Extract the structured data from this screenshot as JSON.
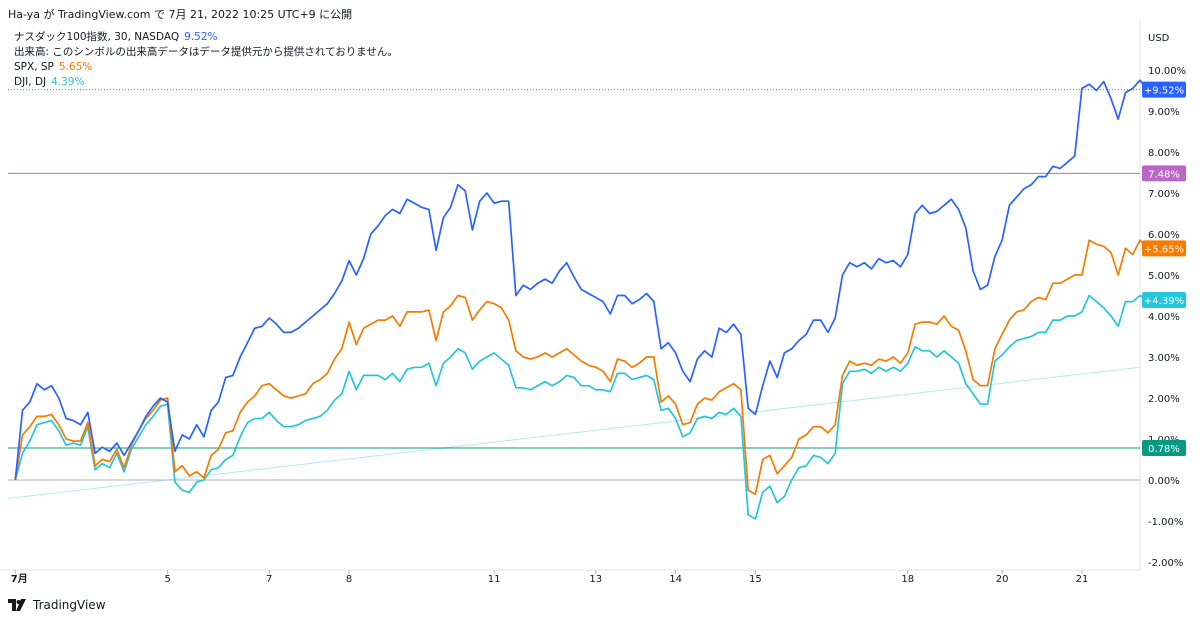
{
  "header": {
    "published_text": "Ha-ya が TradingView.com で 7月 21, 2022 10:25 UTC+9 に公開"
  },
  "legend": {
    "main": {
      "name": "ナスダック100指数, 30, NASDAQ",
      "value": "9.52%"
    },
    "volume_note": "出来高: このシンボルの出来高データはデータ提供元から提供されておりません。",
    "spx": {
      "name": "SPX, SP",
      "value": "5.65%"
    },
    "dji": {
      "name": "DJI, DJ",
      "value": "4.39%"
    }
  },
  "footer": {
    "brand": "TradingView"
  },
  "colors": {
    "ndx": "#2962ff",
    "spx": "#f57c00",
    "dji": "#26c6da",
    "purple_line": "#ba68c8",
    "green_line": "#089981",
    "zero_line": "#b2b5be",
    "trend_line": "#b2ebf2"
  },
  "chart_data": {
    "type": "line",
    "currency": "USD",
    "ylim": [
      -2.0,
      10.5
    ],
    "y_ticks": [
      "10.00%",
      "9.00%",
      "8.00%",
      "7.00%",
      "6.00%",
      "5.00%",
      "4.00%",
      "3.00%",
      "2.00%",
      "1.00%",
      "0.00%",
      "-1.00%",
      "-2.00%"
    ],
    "y_tick_values": [
      10,
      9,
      8,
      7,
      6,
      5,
      4,
      3,
      2,
      1,
      0,
      -1,
      -2
    ],
    "x_ticks": [
      {
        "label": "7月",
        "x": 0
      },
      {
        "label": "5",
        "x": 21
      },
      {
        "label": "7",
        "x": 35
      },
      {
        "label": "8",
        "x": 46
      },
      {
        "label": "11",
        "x": 66
      },
      {
        "label": "13",
        "x": 80
      },
      {
        "label": "14",
        "x": 91
      },
      {
        "label": "15",
        "x": 102
      },
      {
        "label": "18",
        "x": 123
      },
      {
        "label": "20",
        "x": 136
      },
      {
        "label": "21",
        "x": 147
      }
    ],
    "x_range": [
      -1,
      155
    ],
    "horizontal_lines": [
      {
        "name": "purple",
        "value": 7.48,
        "label": "7.48%"
      },
      {
        "name": "green",
        "value": 0.78,
        "label": "0.78%"
      },
      {
        "name": "zero",
        "value": 0.0
      }
    ],
    "trend_line": {
      "from": [
        -1,
        -0.45
      ],
      "to": [
        155,
        2.75
      ]
    },
    "series": [
      {
        "name": "NDX",
        "label": "+9.52%",
        "values": [
          0.0,
          1.7,
          1.9,
          2.35,
          2.2,
          2.3,
          2.0,
          1.5,
          1.45,
          1.35,
          1.65,
          0.65,
          0.8,
          0.7,
          0.9,
          0.6,
          0.9,
          1.2,
          1.55,
          1.8,
          2.0,
          1.9,
          0.7,
          1.1,
          1.0,
          1.35,
          1.05,
          1.7,
          1.9,
          2.5,
          2.55,
          3.0,
          3.35,
          3.7,
          3.75,
          3.95,
          3.8,
          3.6,
          3.6,
          3.7,
          3.85,
          4.0,
          4.15,
          4.3,
          4.55,
          4.85,
          5.35,
          5.0,
          5.4,
          6.0,
          6.2,
          6.45,
          6.6,
          6.5,
          6.85,
          6.75,
          6.65,
          6.6,
          5.6,
          6.4,
          6.65,
          7.2,
          7.05,
          6.1,
          6.8,
          7.0,
          6.75,
          6.8,
          6.8,
          4.5,
          4.75,
          4.65,
          4.8,
          4.9,
          4.8,
          5.1,
          5.3,
          4.95,
          4.65,
          4.55,
          4.45,
          4.35,
          4.05,
          4.5,
          4.5,
          4.3,
          4.4,
          4.55,
          4.35,
          3.2,
          3.35,
          3.1,
          2.65,
          2.4,
          2.95,
          3.15,
          3.0,
          3.7,
          3.6,
          3.8,
          3.55,
          1.75,
          1.6,
          2.3,
          2.9,
          2.5,
          3.1,
          3.2,
          3.4,
          3.55,
          3.9,
          3.9,
          3.6,
          3.95,
          5.0,
          5.3,
          5.2,
          5.3,
          5.15,
          5.4,
          5.3,
          5.35,
          5.2,
          5.5,
          6.5,
          6.7,
          6.5,
          6.55,
          6.7,
          6.85,
          6.6,
          6.15,
          5.1,
          4.65,
          4.75,
          5.45,
          5.85,
          6.7,
          6.9,
          7.1,
          7.2,
          7.4,
          7.4,
          7.65,
          7.6,
          7.75,
          7.9,
          9.55,
          9.65,
          9.5,
          9.72,
          9.3,
          8.8,
          9.45,
          9.55,
          9.75,
          9.52
        ]
      },
      {
        "name": "SPX",
        "label": "+5.65%",
        "values": [
          0.0,
          1.1,
          1.3,
          1.55,
          1.55,
          1.6,
          1.35,
          1.0,
          0.95,
          0.95,
          1.4,
          0.35,
          0.5,
          0.45,
          0.75,
          0.3,
          0.85,
          1.2,
          1.5,
          1.7,
          1.95,
          2.0,
          0.2,
          0.35,
          0.1,
          0.2,
          0.05,
          0.6,
          0.75,
          1.15,
          1.2,
          1.65,
          1.9,
          2.05,
          2.3,
          2.35,
          2.2,
          2.05,
          2.0,
          2.05,
          2.1,
          2.35,
          2.45,
          2.6,
          2.95,
          3.2,
          3.85,
          3.3,
          3.7,
          3.8,
          3.9,
          3.9,
          4.0,
          3.75,
          4.1,
          4.1,
          4.1,
          4.15,
          3.4,
          4.1,
          4.25,
          4.5,
          4.45,
          3.9,
          4.15,
          4.35,
          4.3,
          4.2,
          3.9,
          3.15,
          3.0,
          2.95,
          3.0,
          3.1,
          3.0,
          3.1,
          3.2,
          3.05,
          2.9,
          2.8,
          2.75,
          2.65,
          2.4,
          2.95,
          2.9,
          2.75,
          2.85,
          3.0,
          3.0,
          1.9,
          2.05,
          1.85,
          1.35,
          1.4,
          1.85,
          2.0,
          1.95,
          2.15,
          2.25,
          2.35,
          2.2,
          -0.25,
          -0.35,
          0.5,
          0.6,
          0.15,
          0.35,
          0.55,
          1.0,
          1.1,
          1.3,
          1.3,
          1.15,
          1.35,
          2.55,
          2.9,
          2.8,
          2.85,
          2.8,
          2.95,
          2.9,
          3.0,
          2.85,
          3.1,
          3.8,
          3.85,
          3.85,
          3.8,
          4.0,
          3.75,
          3.65,
          3.15,
          2.45,
          2.3,
          2.3,
          3.2,
          3.55,
          3.9,
          4.1,
          4.15,
          4.35,
          4.45,
          4.4,
          4.8,
          4.8,
          4.9,
          5.0,
          5.0,
          5.85,
          5.75,
          5.7,
          5.55,
          5.0,
          5.65,
          5.5,
          5.85,
          5.65
        ]
      },
      {
        "name": "DJI",
        "label": "+4.39%",
        "values": [
          0.0,
          0.65,
          0.95,
          1.35,
          1.4,
          1.45,
          1.2,
          0.85,
          0.9,
          0.85,
          1.3,
          0.25,
          0.4,
          0.3,
          0.65,
          0.2,
          0.75,
          1.05,
          1.35,
          1.55,
          1.8,
          1.85,
          -0.05,
          -0.25,
          -0.3,
          -0.05,
          0.0,
          0.25,
          0.3,
          0.5,
          0.6,
          1.05,
          1.4,
          1.5,
          1.5,
          1.65,
          1.45,
          1.3,
          1.3,
          1.35,
          1.45,
          1.5,
          1.55,
          1.7,
          1.95,
          2.1,
          2.65,
          2.2,
          2.55,
          2.55,
          2.55,
          2.45,
          2.6,
          2.4,
          2.7,
          2.75,
          2.75,
          2.85,
          2.3,
          2.85,
          3.0,
          3.2,
          3.1,
          2.7,
          2.9,
          3.0,
          3.1,
          2.95,
          2.8,
          2.25,
          2.25,
          2.2,
          2.3,
          2.4,
          2.3,
          2.4,
          2.55,
          2.5,
          2.3,
          2.3,
          2.2,
          2.2,
          2.15,
          2.6,
          2.6,
          2.45,
          2.5,
          2.55,
          2.45,
          1.7,
          1.75,
          1.5,
          1.05,
          1.15,
          1.5,
          1.55,
          1.5,
          1.65,
          1.6,
          1.75,
          1.55,
          -0.85,
          -0.95,
          -0.3,
          -0.15,
          -0.55,
          -0.4,
          0.0,
          0.3,
          0.35,
          0.6,
          0.55,
          0.4,
          0.65,
          2.35,
          2.65,
          2.65,
          2.7,
          2.6,
          2.75,
          2.65,
          2.75,
          2.65,
          2.85,
          3.25,
          3.15,
          3.15,
          3.0,
          3.15,
          3.0,
          2.85,
          2.35,
          2.1,
          1.85,
          1.85,
          2.9,
          3.05,
          3.25,
          3.4,
          3.45,
          3.5,
          3.6,
          3.6,
          3.9,
          3.9,
          4.0,
          4.0,
          4.1,
          4.5,
          4.35,
          4.2,
          4.0,
          3.75,
          4.35,
          4.35,
          4.5,
          4.39
        ]
      }
    ]
  }
}
